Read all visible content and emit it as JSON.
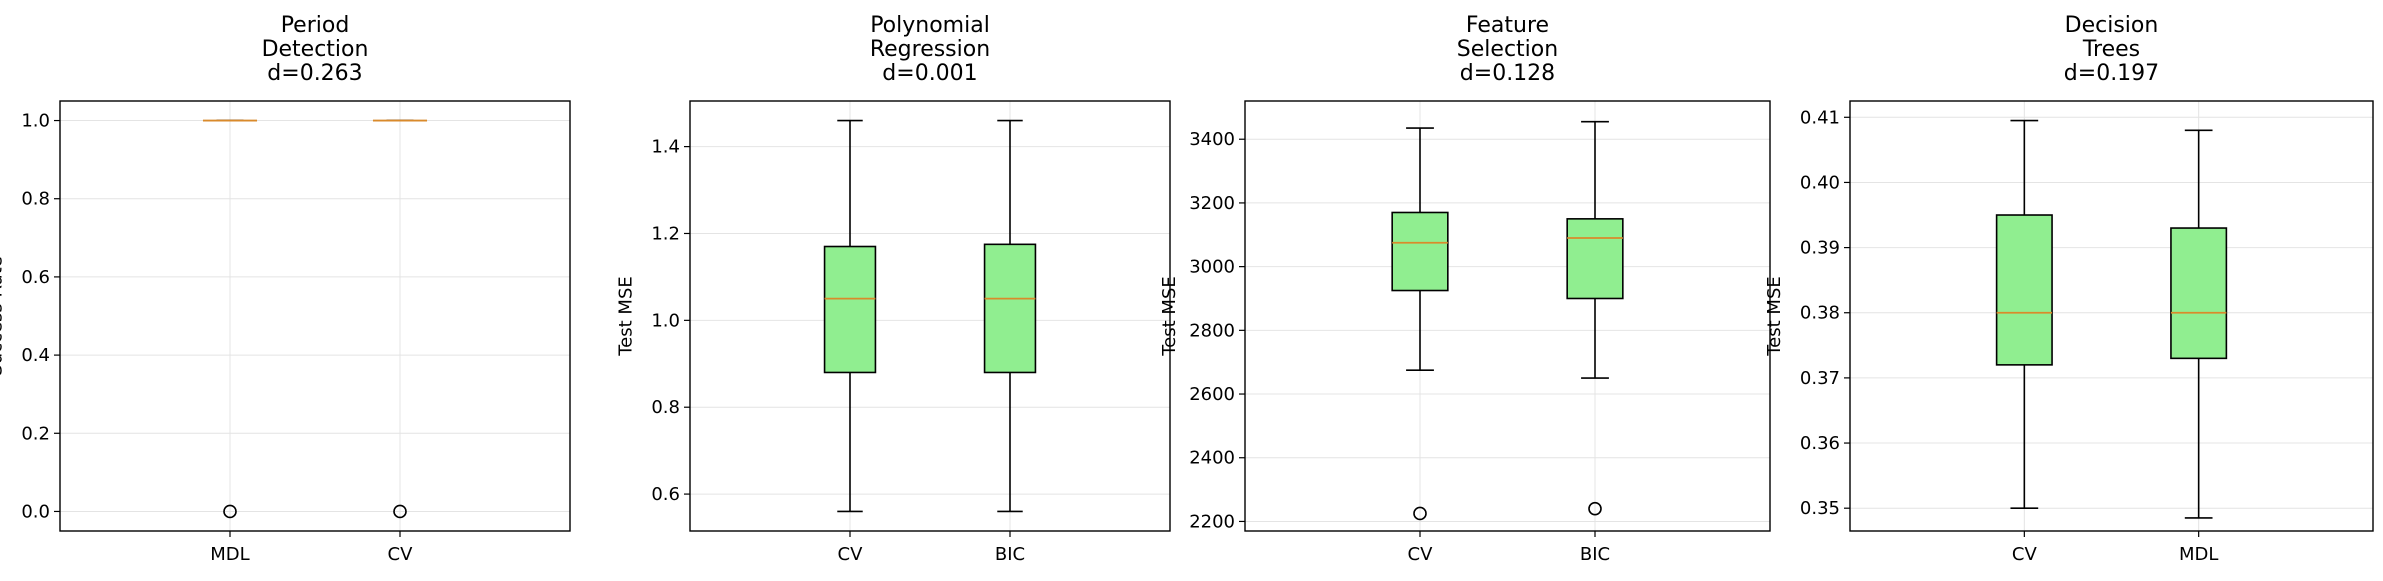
{
  "colors": {
    "box_fill": "#90ee90",
    "median": "#d98a2b",
    "grid": "#e4e4e4",
    "frame": "#000000"
  },
  "chart_data": [
    {
      "type": "box",
      "title": [
        "Period",
        "Detection",
        "d=0.263"
      ],
      "ylabel": "Success Rate",
      "ylim": [
        -0.05,
        1.05
      ],
      "yticks": [
        0.0,
        0.2,
        0.4,
        0.6,
        0.8,
        1.0
      ],
      "ytick_labels": [
        "0.0",
        "0.2",
        "0.4",
        "0.6",
        "0.8",
        "1.0"
      ],
      "grid": true,
      "categories": [
        "MDL",
        "CV"
      ],
      "boxes": [
        {
          "label": "MDL",
          "whislo": 1.0,
          "q1": 1.0,
          "med": 1.0,
          "q3": 1.0,
          "whishi": 1.0,
          "fliers": [
            0.0
          ]
        },
        {
          "label": "CV",
          "whislo": 1.0,
          "q1": 1.0,
          "med": 1.0,
          "q3": 1.0,
          "whishi": 1.0,
          "fliers": [
            0.0
          ]
        }
      ]
    },
    {
      "type": "box",
      "title": [
        "Polynomial",
        "Regression",
        "d=0.001"
      ],
      "ylabel": "Test MSE",
      "ylim": [
        0.515,
        1.505
      ],
      "yticks": [
        0.6,
        0.8,
        1.0,
        1.2,
        1.4
      ],
      "ytick_labels": [
        "0.6",
        "0.8",
        "1.0",
        "1.2",
        "1.4"
      ],
      "grid": true,
      "categories": [
        "CV",
        "BIC"
      ],
      "boxes": [
        {
          "label": "CV",
          "whislo": 0.56,
          "q1": 0.88,
          "med": 1.05,
          "q3": 1.17,
          "whishi": 1.46,
          "fliers": []
        },
        {
          "label": "BIC",
          "whislo": 0.56,
          "q1": 0.88,
          "med": 1.05,
          "q3": 1.175,
          "whishi": 1.46,
          "fliers": []
        }
      ]
    },
    {
      "type": "box",
      "title": [
        "Feature",
        "Selection",
        "d=0.128"
      ],
      "ylabel": "Test MSE",
      "ylim": [
        2170,
        3520
      ],
      "yticks": [
        2200,
        2400,
        2600,
        2800,
        3000,
        3200,
        3400
      ],
      "ytick_labels": [
        "2200",
        "2400",
        "2600",
        "2800",
        "3000",
        "3200",
        "3400"
      ],
      "grid": true,
      "categories": [
        "CV",
        "BIC"
      ],
      "boxes": [
        {
          "label": "CV",
          "whislo": 2675,
          "q1": 2925,
          "med": 3075,
          "q3": 3170,
          "whishi": 3435,
          "fliers": [
            2225
          ]
        },
        {
          "label": "BIC",
          "whislo": 2650,
          "q1": 2900,
          "med": 3090,
          "q3": 3150,
          "whishi": 3455,
          "fliers": [
            2240
          ]
        }
      ]
    },
    {
      "type": "box",
      "title": [
        "Decision",
        "Trees",
        "d=0.197"
      ],
      "ylabel": "Test MSE",
      "ylim": [
        0.3465,
        0.4125
      ],
      "yticks": [
        0.35,
        0.36,
        0.37,
        0.38,
        0.39,
        0.4,
        0.41
      ],
      "ytick_labels": [
        "0.35",
        "0.36",
        "0.37",
        "0.38",
        "0.39",
        "0.40",
        "0.41"
      ],
      "grid": true,
      "categories": [
        "CV",
        "MDL"
      ],
      "boxes": [
        {
          "label": "CV",
          "whislo": 0.35,
          "q1": 0.372,
          "med": 0.38,
          "q3": 0.395,
          "whishi": 0.4095,
          "fliers": []
        },
        {
          "label": "MDL",
          "whislo": 0.3485,
          "q1": 0.373,
          "med": 0.38,
          "q3": 0.393,
          "whishi": 0.408,
          "fliers": []
        }
      ]
    }
  ]
}
